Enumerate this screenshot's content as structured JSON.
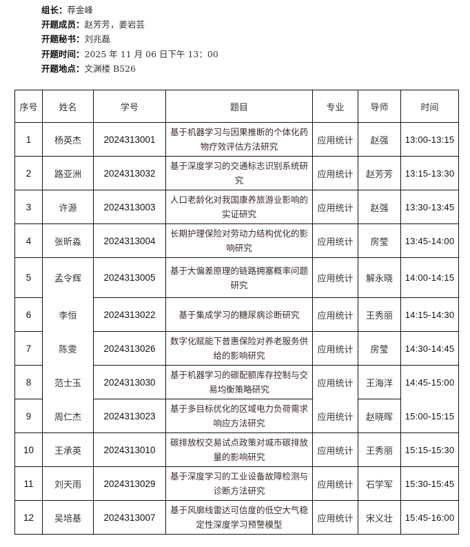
{
  "info": [
    {
      "label": "组长：",
      "value": "荐金峰"
    },
    {
      "label": "开题成员：",
      "value": "赵芳芳，姜岩芸"
    },
    {
      "label": "开题秘书：",
      "value": "刘兆磊"
    },
    {
      "label": "开题时间：",
      "value": "2025 年 11 月 06 日下午 13：00"
    },
    {
      "label": "开题地点：",
      "value": "文渊楼 B526"
    }
  ],
  "table": {
    "headers": [
      "序号",
      "姓名",
      "学号",
      "题目",
      "专业",
      "导师",
      "时间"
    ],
    "rows": [
      {
        "no": "1",
        "name": "杨英杰",
        "id": "2024313001",
        "topic": "基于机器学习与因果推断的个体化药物疗效评估方法研究",
        "major": "应用统计",
        "advisor": "赵强",
        "time": "13:00-13:15"
      },
      {
        "no": "2",
        "name": "路亚洲",
        "id": "2024313032",
        "topic": "基于深度学习的交通标志识别系统研究",
        "major": "应用统计",
        "advisor": "赵芳芳",
        "time": "13:15-13:30"
      },
      {
        "no": "3",
        "name": "许源",
        "id": "2024313003",
        "topic": "人口老龄化对我国康养旅游业影响的实证研究",
        "major": "应用统计",
        "advisor": "赵强",
        "time": "13:30-13:45"
      },
      {
        "no": "4",
        "name": "张昕淼",
        "id": "2024313004",
        "topic": "长期护理保险对劳动力结构优化的影响研究",
        "major": "应用统计",
        "advisor": "房莹",
        "time": "13:45-14:00"
      },
      {
        "no": "5",
        "name": "孟令辉",
        "id": "2024313005",
        "topic": "基于大偏差原理的链路拥塞概率问题研究",
        "major": "应用统计",
        "advisor": "解永晓",
        "time": "14:00-14:15"
      },
      {
        "no": "6",
        "name": "李恒",
        "id": "2024313022",
        "topic": "基于集成学习的糖尿病诊断研究",
        "major": "应用统计",
        "advisor": "王秀丽",
        "time": "14:15-14:30"
      },
      {
        "no": "7",
        "name": "陈雯",
        "id": "2024313026",
        "topic": "数字化赋能下普惠保险对养老服务供给的影响研究",
        "major": "应用统计",
        "advisor": "房莹",
        "time": "14:30-14:45"
      },
      {
        "no": "8",
        "name": "范士玉",
        "id": "2024313030",
        "topic": "基于机器学习的碳配额库存控制与交易均衡策略研究",
        "major": "应用统计",
        "advisor": "王海洋",
        "time": "14:45-15:00"
      },
      {
        "no": "9",
        "name": "周仁杰",
        "id": "2024313023",
        "topic": "基于多目标优化的区域电力负荷需求响应方法研究",
        "major": "应用统计",
        "advisor": "赵晓晖",
        "time": "15:00-15:15"
      },
      {
        "no": "10",
        "name": "王承英",
        "id": "2024313010",
        "topic": "碳排放权交易试点政策对城市碳排放量的影响研究",
        "major": "应用统计",
        "advisor": "王秀丽",
        "time": "15:15-15:30"
      },
      {
        "no": "11",
        "name": "刘天雨",
        "id": "2024313029",
        "topic": "基于深度学习的工业设备故障检测与诊断方法研究",
        "major": "应用统计",
        "advisor": "石学军",
        "time": "15:30-15:45"
      },
      {
        "no": "12",
        "name": "吴培基",
        "id": "2024313007",
        "topic": "基于风廓线雷达可信度的低空大气稳定性深度学习预警模型",
        "major": "应用统计",
        "advisor": "宋义壮",
        "time": "15:45-16:00"
      }
    ]
  }
}
